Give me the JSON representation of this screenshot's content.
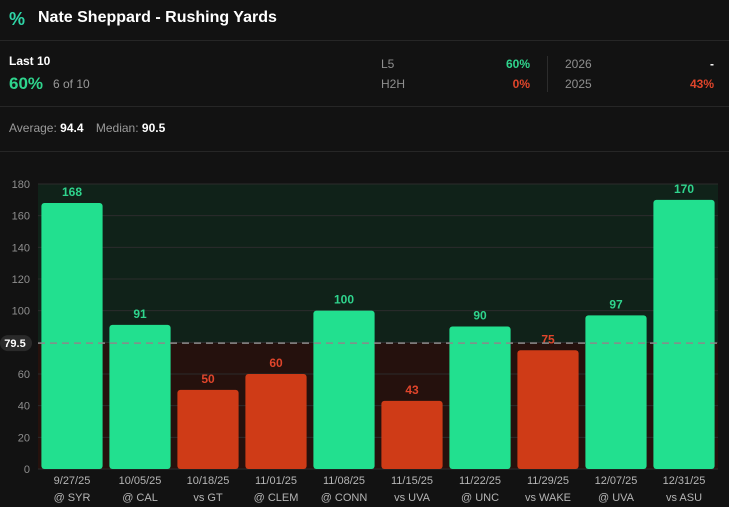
{
  "header": {
    "title": "Nate Sheppard - Rushing Yards",
    "icon": "percent-icon"
  },
  "summary": {
    "label": "Last 10",
    "pct": "60%",
    "count": "6 of 10",
    "l5_label": "L5",
    "l5_value": "60%",
    "h2h_label": "H2H",
    "h2h_value": "0%",
    "y2026_label": "2026",
    "y2026_value": "-",
    "y2025_label": "2025",
    "y2025_value": "43%"
  },
  "averages": {
    "average_label": "Average:",
    "average": "94.4",
    "median_label": "Median:",
    "median": "90.5"
  },
  "colors": {
    "over": "#22e08f",
    "under": "#cf3b17",
    "over_label": "#2fd48d",
    "under_label": "#e0452b"
  },
  "chart_data": {
    "type": "bar",
    "categories": [
      [
        "9/27/25",
        "@ SYR"
      ],
      [
        "10/05/25",
        "@ CAL"
      ],
      [
        "10/18/25",
        "vs GT"
      ],
      [
        "11/01/25",
        "@ CLEM"
      ],
      [
        "11/08/25",
        "@ CONN"
      ],
      [
        "11/15/25",
        "vs UVA"
      ],
      [
        "11/22/25",
        "@ UNC"
      ],
      [
        "11/29/25",
        "vs WAKE"
      ],
      [
        "12/07/25",
        "@ UVA"
      ],
      [
        "12/31/25",
        "vs ASU"
      ]
    ],
    "values": [
      168,
      91,
      50,
      60,
      100,
      43,
      90,
      75,
      97,
      170
    ],
    "ylim": [
      0,
      180
    ],
    "yticks": [
      0,
      20,
      40,
      60,
      80,
      100,
      120,
      140,
      160,
      180
    ],
    "line": 79.5,
    "line_label": "79.5",
    "grid": true
  }
}
